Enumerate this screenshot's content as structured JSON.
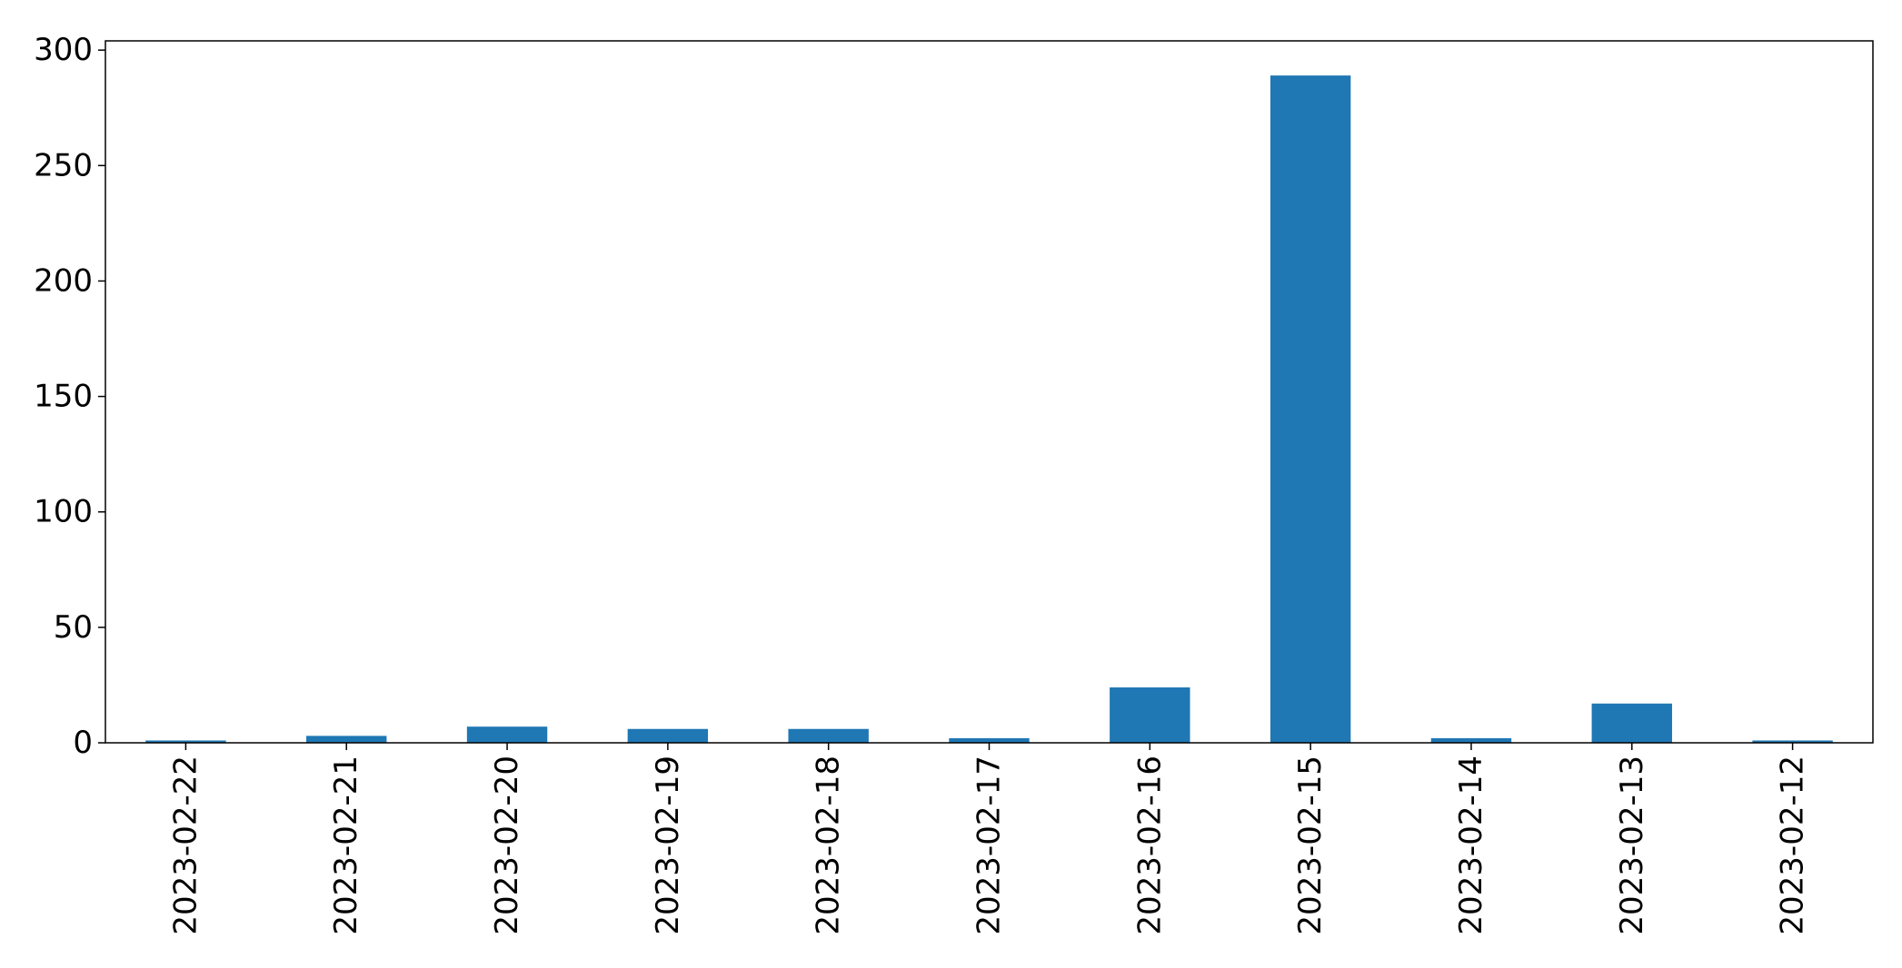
{
  "chart_data": {
    "type": "bar",
    "title": "",
    "xlabel": "",
    "ylabel": "",
    "categories": [
      "2023-02-22",
      "2023-02-21",
      "2023-02-20",
      "2023-02-19",
      "2023-02-18",
      "2023-02-17",
      "2023-02-16",
      "2023-02-15",
      "2023-02-14",
      "2023-02-13",
      "2023-02-12"
    ],
    "values": [
      1,
      3,
      7,
      6,
      6,
      2,
      24,
      289,
      2,
      17,
      1
    ],
    "ylim": [
      0,
      304
    ],
    "yticks": [
      0,
      50,
      100,
      150,
      200,
      250,
      300
    ],
    "grid": false,
    "legend": "none",
    "bar_color": "#1f77b4"
  }
}
